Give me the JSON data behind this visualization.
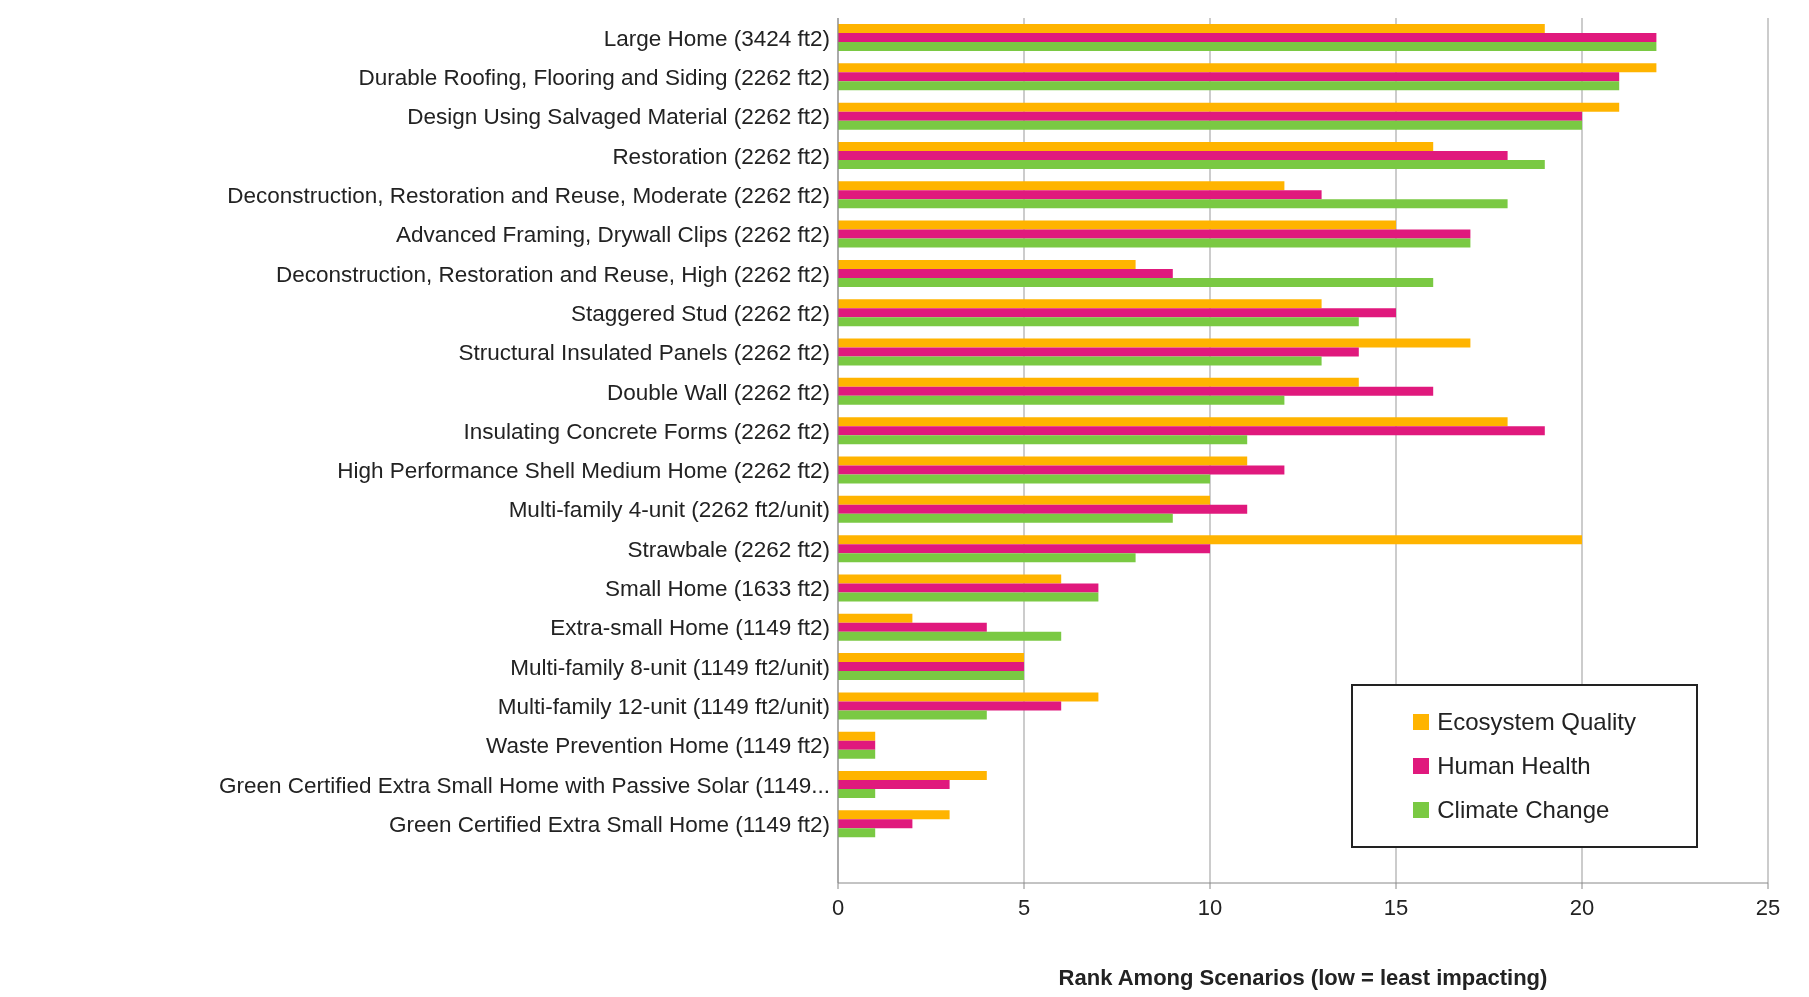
{
  "chart_data": {
    "type": "bar",
    "orientation": "horizontal",
    "xlabel": "Rank Among Scenarios (low = least impacting)",
    "categories": [
      "Large Home (3424 ft2)",
      "Durable Roofing, Flooring and Siding (2262 ft2)",
      "Design Using Salvaged Material (2262 ft2)",
      "Restoration (2262 ft2)",
      "Deconstruction, Restoration and Reuse, Moderate (2262 ft2)",
      "Advanced Framing, Drywall Clips (2262 ft2)",
      "Deconstruction, Restoration and Reuse, High (2262 ft2)",
      "Staggered Stud (2262 ft2)",
      "Structural Insulated Panels (2262 ft2)",
      "Double Wall (2262 ft2)",
      "Insulating Concrete Forms (2262 ft2)",
      "High Performance Shell Medium Home (2262 ft2)",
      "Multi-family 4-unit (2262 ft2/unit)",
      "Strawbale (2262 ft2)",
      "Small Home (1633 ft2)",
      "Extra-small Home (1149 ft2)",
      "Multi-family 8-unit (1149 ft2/unit)",
      "Multi-family 12-unit (1149 ft2/unit)",
      "Waste Prevention Home (1149 ft2)",
      "Green Certified Extra Small Home with Passive Solar (1149...",
      "Green Certified Extra Small Home (1149 ft2)",
      null
    ],
    "series": [
      {
        "name": "Ecosystem Quality",
        "color": "#ffb400",
        "values": [
          19,
          22,
          21,
          16,
          12,
          15,
          8,
          13,
          17,
          14,
          18,
          11,
          10,
          20,
          6,
          2,
          5,
          7,
          1,
          4,
          3,
          null
        ]
      },
      {
        "name": "Human Health",
        "color": "#e0197d",
        "values": [
          22,
          21,
          20,
          18,
          13,
          17,
          9,
          15,
          14,
          16,
          19,
          12,
          11,
          10,
          7,
          4,
          5,
          6,
          1,
          3,
          2,
          null
        ]
      },
      {
        "name": "Climate Change",
        "color": "#7ac943",
        "values": [
          22,
          21,
          20,
          19,
          18,
          17,
          16,
          14,
          13,
          12,
          11,
          10,
          9,
          8,
          7,
          6,
          5,
          4,
          1,
          1,
          1,
          null
        ]
      }
    ],
    "xlim": [
      0,
      25
    ],
    "xticks": [
      0,
      5,
      10,
      15,
      20,
      25
    ],
    "grid": "x",
    "legend": "bottom right"
  }
}
